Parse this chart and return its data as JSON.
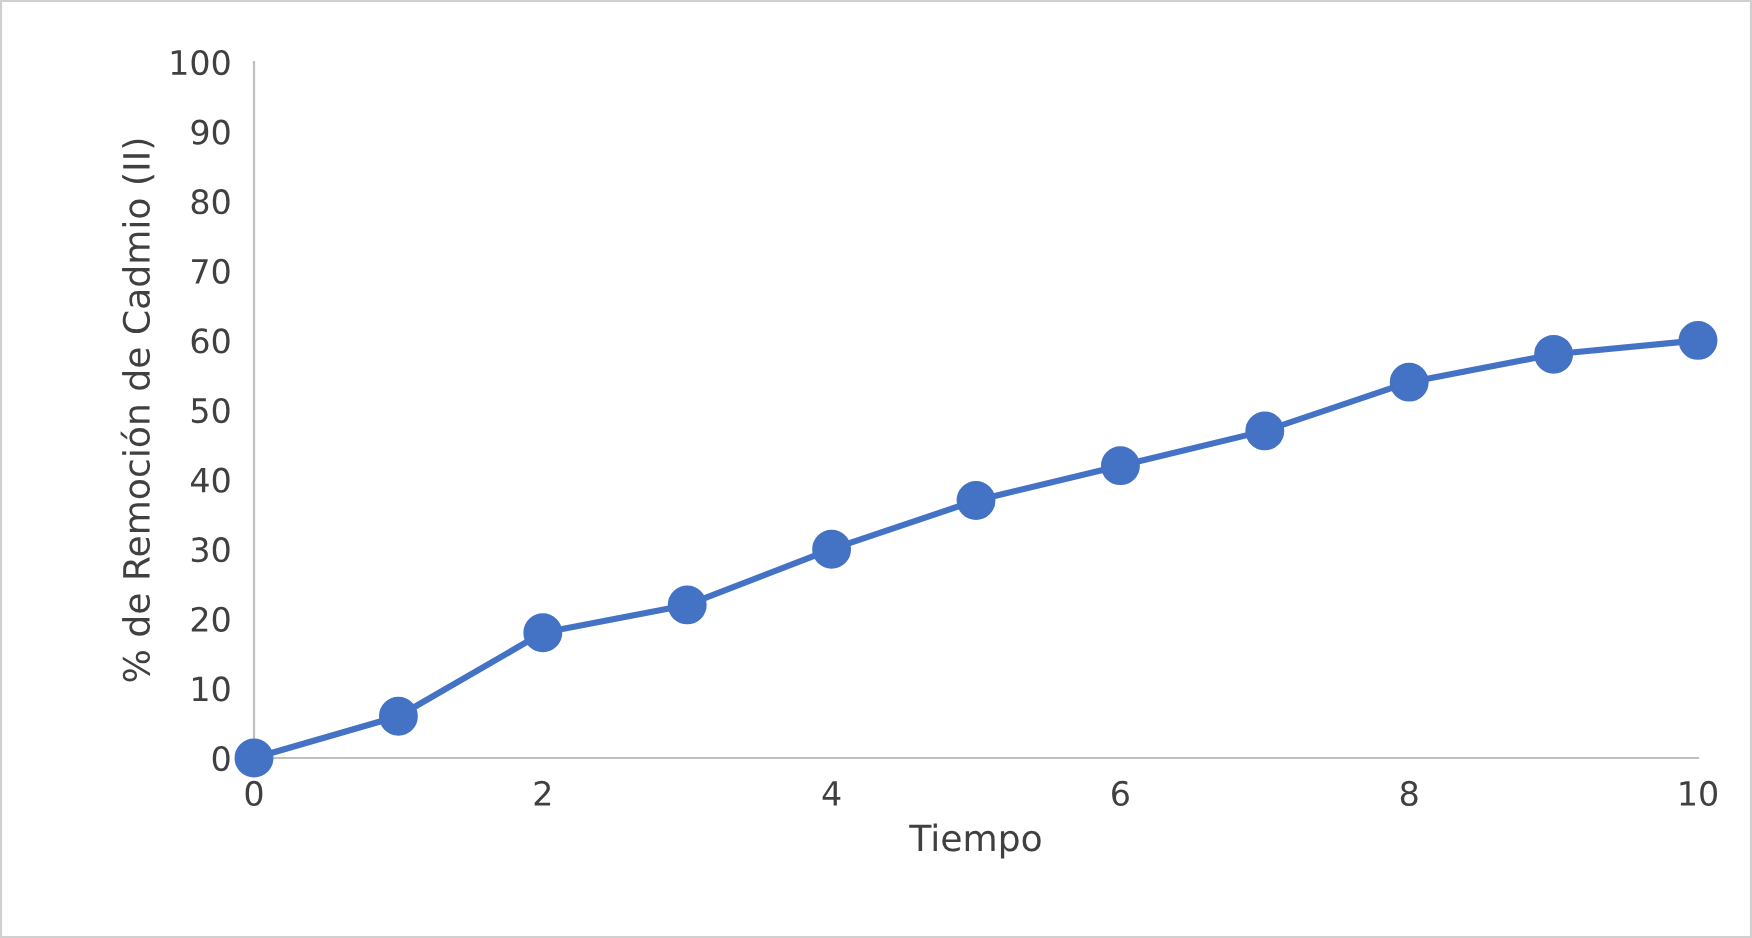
{
  "chart_data": {
    "type": "line",
    "xlabel": "Tiempo",
    "ylabel": "% de Remoción de Cadmio (II)",
    "x": [
      0,
      1,
      2,
      3,
      4,
      5,
      6,
      7,
      8,
      9,
      10
    ],
    "series": [
      {
        "color": "#4472c4",
        "values": [
          0,
          6,
          18,
          22,
          30,
          37,
          42,
          47,
          54,
          58,
          60
        ]
      }
    ],
    "xlim": [
      0,
      10
    ],
    "xticks": [
      0,
      2,
      4,
      6,
      8,
      10
    ],
    "ylim": [
      0,
      100
    ],
    "yticks": [
      0,
      10,
      20,
      30,
      40,
      50,
      60,
      70,
      80,
      90,
      100
    ],
    "grid": false,
    "legend": false,
    "marker": "circle",
    "line_style": "solid"
  }
}
